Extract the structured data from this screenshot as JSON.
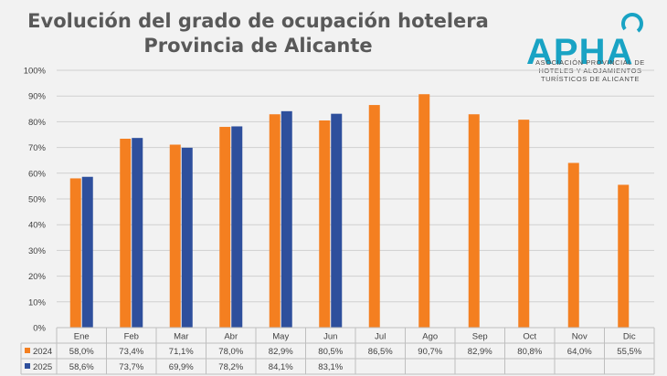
{
  "title": {
    "line1": "Evolución del grado de ocupación hotelera",
    "line2": "Provincia de Alicante"
  },
  "logo": {
    "name": "APHA",
    "line1": "Asociación Provincial de",
    "line2": "Hoteles y Alojamientos",
    "line3": "Turísticos de Alicante"
  },
  "colors": {
    "s2024": "#f47f20",
    "s2025": "#2e4f9c",
    "logo": "#19a3c4"
  },
  "chart_data": {
    "type": "bar",
    "categories": [
      "Ene",
      "Feb",
      "Mar",
      "Abr",
      "May",
      "Jun",
      "Jul",
      "Ago",
      "Sep",
      "Oct",
      "Nov",
      "Dic"
    ],
    "series": [
      {
        "name": "2024",
        "values": [
          58.0,
          73.4,
          71.1,
          78.0,
          82.9,
          80.5,
          86.5,
          90.7,
          82.9,
          80.8,
          64.0,
          55.5
        ],
        "labels": [
          "58,0%",
          "73,4%",
          "71,1%",
          "78,0%",
          "82,9%",
          "80,5%",
          "86,5%",
          "90,7%",
          "82,9%",
          "80,8%",
          "64,0%",
          "55,5%"
        ]
      },
      {
        "name": "2025",
        "values": [
          58.6,
          73.7,
          69.9,
          78.2,
          84.1,
          83.1,
          null,
          null,
          null,
          null,
          null,
          null
        ],
        "labels": [
          "58,6%",
          "73,7%",
          "69,9%",
          "78,2%",
          "84,1%",
          "83,1%",
          "",
          "",
          "",
          "",
          "",
          ""
        ]
      }
    ],
    "yticks": [
      "0%",
      "10%",
      "20%",
      "30%",
      "40%",
      "50%",
      "60%",
      "70%",
      "80%",
      "90%",
      "100%"
    ],
    "ylim": [
      0,
      100
    ],
    "grid": true,
    "legend": "data-table"
  }
}
